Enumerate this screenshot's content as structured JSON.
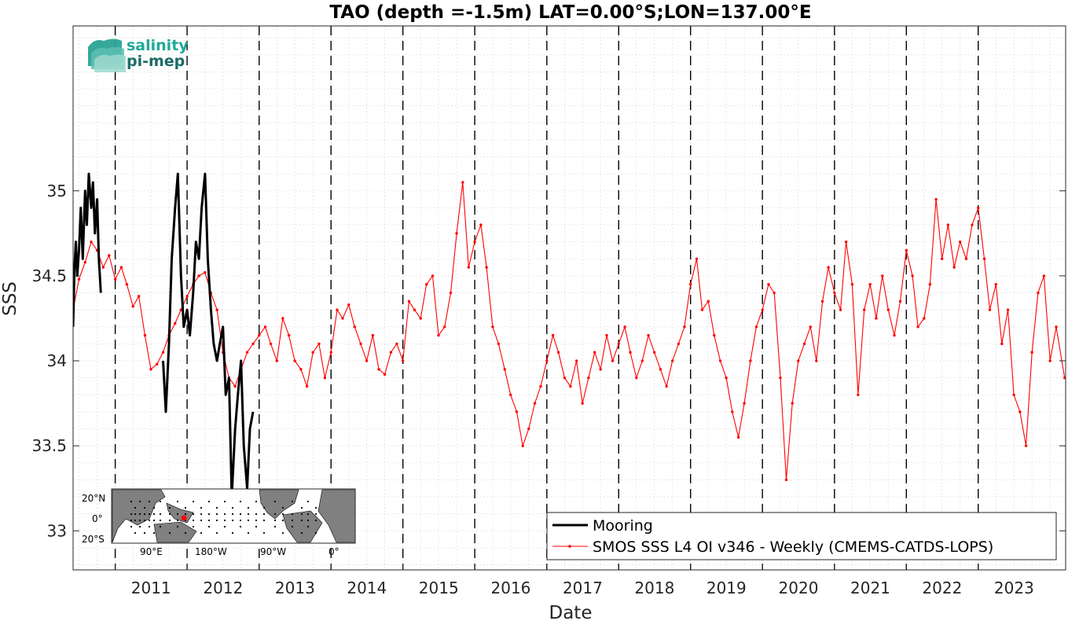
{
  "chart_data": {
    "type": "line",
    "title": "TAO (depth =-1.5m) LAT=0.00°S;LON=137.00°E",
    "xlabel": "Date",
    "ylabel": "SSS",
    "xlim": [
      "2010-06-01",
      "2024-03-20"
    ],
    "ylim": [
      32.77,
      35.97
    ],
    "x_ticks": [
      "2011",
      "2012",
      "2013",
      "2014",
      "2015",
      "2016",
      "2017",
      "2018",
      "2019",
      "2020",
      "2021",
      "2022",
      "2023"
    ],
    "y_ticks": [
      33,
      33.5,
      34,
      34.5,
      35
    ],
    "year_boundaries": [
      "2011-01-01",
      "2012-01-01",
      "2013-01-01",
      "2014-01-01",
      "2015-01-01",
      "2016-01-01",
      "2017-01-01",
      "2018-01-01",
      "2019-01-01",
      "2020-01-01",
      "2021-01-01",
      "2022-01-01",
      "2023-01-01"
    ],
    "grid": true,
    "legend_position": "bottom-right",
    "series": [
      {
        "name": "Mooring",
        "color": "#000000",
        "style": "thick-line",
        "points": [
          [
            "2010-06-01",
            34.2
          ],
          [
            "2010-06-08",
            34.55
          ],
          [
            "2010-06-15",
            34.7
          ],
          [
            "2010-06-22",
            34.5
          ],
          [
            "2010-07-01",
            34.65
          ],
          [
            "2010-07-10",
            34.9
          ],
          [
            "2010-07-20",
            34.6
          ],
          [
            "2010-08-01",
            35.0
          ],
          [
            "2010-08-10",
            34.8
          ],
          [
            "2010-08-20",
            35.1
          ],
          [
            "2010-09-01",
            34.9
          ],
          [
            "2010-09-10",
            35.05
          ],
          [
            "2010-09-20",
            34.75
          ],
          [
            "2010-10-01",
            34.95
          ],
          [
            "2010-10-10",
            34.6
          ],
          [
            "2010-10-20",
            34.4
          ],
          [
            "2011-09-01",
            34.0
          ],
          [
            "2011-09-15",
            33.7
          ],
          [
            "2011-10-01",
            34.1
          ],
          [
            "2011-10-15",
            34.6
          ],
          [
            "2011-11-01",
            34.9
          ],
          [
            "2011-11-15",
            35.1
          ],
          [
            "2011-12-01",
            34.5
          ],
          [
            "2011-12-15",
            34.2
          ],
          [
            "2012-01-01",
            34.3
          ],
          [
            "2012-01-15",
            34.15
          ],
          [
            "2012-02-01",
            34.4
          ],
          [
            "2012-02-15",
            34.7
          ],
          [
            "2012-03-01",
            34.6
          ],
          [
            "2012-03-15",
            34.9
          ],
          [
            "2012-04-01",
            35.1
          ],
          [
            "2012-04-15",
            34.6
          ],
          [
            "2012-05-01",
            34.3
          ],
          [
            "2012-05-15",
            34.1
          ],
          [
            "2012-06-01",
            34.0
          ],
          [
            "2012-06-15",
            34.1
          ],
          [
            "2012-07-01",
            34.2
          ],
          [
            "2012-07-15",
            33.8
          ],
          [
            "2012-08-01",
            33.9
          ],
          [
            "2012-08-15",
            33.2
          ],
          [
            "2012-09-01",
            33.6
          ],
          [
            "2012-09-15",
            33.8
          ],
          [
            "2012-10-01",
            34.0
          ],
          [
            "2012-10-15",
            33.5
          ],
          [
            "2012-11-01",
            33.25
          ],
          [
            "2012-11-15",
            33.6
          ],
          [
            "2012-12-01",
            33.7
          ]
        ]
      },
      {
        "name": "SMOS SSS L4 OI v346 - Weekly (CMEMS-CATDS-LOPS)",
        "color": "#ff0000",
        "style": "line-dots",
        "points": [
          [
            "2010-06-01",
            34.3
          ],
          [
            "2010-07-01",
            34.48
          ],
          [
            "2010-08-01",
            34.58
          ],
          [
            "2010-09-01",
            34.7
          ],
          [
            "2010-10-01",
            34.65
          ],
          [
            "2010-11-01",
            34.55
          ],
          [
            "2010-12-01",
            34.62
          ],
          [
            "2011-01-01",
            34.48
          ],
          [
            "2011-02-01",
            34.55
          ],
          [
            "2011-03-01",
            34.45
          ],
          [
            "2011-04-01",
            34.32
          ],
          [
            "2011-05-01",
            34.38
          ],
          [
            "2011-06-01",
            34.15
          ],
          [
            "2011-07-01",
            33.95
          ],
          [
            "2011-08-01",
            33.98
          ],
          [
            "2011-09-01",
            34.05
          ],
          [
            "2011-10-01",
            34.15
          ],
          [
            "2011-11-01",
            34.22
          ],
          [
            "2011-12-01",
            34.3
          ],
          [
            "2012-01-01",
            34.38
          ],
          [
            "2012-02-01",
            34.45
          ],
          [
            "2012-03-01",
            34.5
          ],
          [
            "2012-04-01",
            34.52
          ],
          [
            "2012-05-01",
            34.4
          ],
          [
            "2012-06-01",
            34.3
          ],
          [
            "2012-07-01",
            34.05
          ],
          [
            "2012-08-01",
            33.9
          ],
          [
            "2012-09-01",
            33.85
          ],
          [
            "2012-10-01",
            33.95
          ],
          [
            "2012-11-01",
            34.05
          ],
          [
            "2012-12-01",
            34.1
          ],
          [
            "2013-01-01",
            34.15
          ],
          [
            "2013-02-01",
            34.2
          ],
          [
            "2013-03-01",
            34.1
          ],
          [
            "2013-04-01",
            34.0
          ],
          [
            "2013-05-01",
            34.25
          ],
          [
            "2013-06-01",
            34.15
          ],
          [
            "2013-07-01",
            34.0
          ],
          [
            "2013-08-01",
            33.95
          ],
          [
            "2013-09-01",
            33.85
          ],
          [
            "2013-10-01",
            34.05
          ],
          [
            "2013-11-01",
            34.1
          ],
          [
            "2013-12-01",
            33.9
          ],
          [
            "2014-01-01",
            34.05
          ],
          [
            "2014-02-01",
            34.3
          ],
          [
            "2014-03-01",
            34.25
          ],
          [
            "2014-04-01",
            34.33
          ],
          [
            "2014-05-01",
            34.2
          ],
          [
            "2014-06-01",
            34.1
          ],
          [
            "2014-07-01",
            34.0
          ],
          [
            "2014-08-01",
            34.15
          ],
          [
            "2014-09-01",
            33.95
          ],
          [
            "2014-10-01",
            33.92
          ],
          [
            "2014-11-01",
            34.05
          ],
          [
            "2014-12-01",
            34.1
          ],
          [
            "2015-01-01",
            34.0
          ],
          [
            "2015-02-01",
            34.35
          ],
          [
            "2015-03-01",
            34.3
          ],
          [
            "2015-04-01",
            34.25
          ],
          [
            "2015-05-01",
            34.45
          ],
          [
            "2015-06-01",
            34.5
          ],
          [
            "2015-07-01",
            34.15
          ],
          [
            "2015-08-01",
            34.2
          ],
          [
            "2015-09-01",
            34.4
          ],
          [
            "2015-10-01",
            34.75
          ],
          [
            "2015-11-01",
            35.05
          ],
          [
            "2015-12-01",
            34.55
          ],
          [
            "2016-01-01",
            34.7
          ],
          [
            "2016-02-01",
            34.8
          ],
          [
            "2016-03-01",
            34.55
          ],
          [
            "2016-04-01",
            34.2
          ],
          [
            "2016-05-01",
            34.1
          ],
          [
            "2016-06-01",
            33.95
          ],
          [
            "2016-07-01",
            33.8
          ],
          [
            "2016-08-01",
            33.7
          ],
          [
            "2016-09-01",
            33.5
          ],
          [
            "2016-10-01",
            33.6
          ],
          [
            "2016-11-01",
            33.75
          ],
          [
            "2016-12-01",
            33.85
          ],
          [
            "2017-01-01",
            34.0
          ],
          [
            "2017-02-01",
            34.15
          ],
          [
            "2017-03-01",
            34.05
          ],
          [
            "2017-04-01",
            33.9
          ],
          [
            "2017-05-01",
            33.85
          ],
          [
            "2017-06-01",
            34.0
          ],
          [
            "2017-07-01",
            33.75
          ],
          [
            "2017-08-01",
            33.9
          ],
          [
            "2017-09-01",
            34.05
          ],
          [
            "2017-10-01",
            33.95
          ],
          [
            "2017-11-01",
            34.15
          ],
          [
            "2017-12-01",
            34.0
          ],
          [
            "2018-01-01",
            34.1
          ],
          [
            "2018-02-01",
            34.2
          ],
          [
            "2018-03-01",
            34.05
          ],
          [
            "2018-04-01",
            33.9
          ],
          [
            "2018-05-01",
            34.0
          ],
          [
            "2018-06-01",
            34.15
          ],
          [
            "2018-07-01",
            34.05
          ],
          [
            "2018-08-01",
            33.95
          ],
          [
            "2018-09-01",
            33.85
          ],
          [
            "2018-10-01",
            34.0
          ],
          [
            "2018-11-01",
            34.1
          ],
          [
            "2018-12-01",
            34.2
          ],
          [
            "2019-01-01",
            34.45
          ],
          [
            "2019-02-01",
            34.6
          ],
          [
            "2019-03-01",
            34.3
          ],
          [
            "2019-04-01",
            34.35
          ],
          [
            "2019-05-01",
            34.15
          ],
          [
            "2019-06-01",
            34.0
          ],
          [
            "2019-07-01",
            33.9
          ],
          [
            "2019-08-01",
            33.7
          ],
          [
            "2019-09-01",
            33.55
          ],
          [
            "2019-10-01",
            33.75
          ],
          [
            "2019-11-01",
            34.0
          ],
          [
            "2019-12-01",
            34.2
          ],
          [
            "2020-01-01",
            34.3
          ],
          [
            "2020-02-01",
            34.45
          ],
          [
            "2020-03-01",
            34.4
          ],
          [
            "2020-04-01",
            33.9
          ],
          [
            "2020-05-01",
            33.3
          ],
          [
            "2020-06-01",
            33.75
          ],
          [
            "2020-07-01",
            34.0
          ],
          [
            "2020-08-01",
            34.1
          ],
          [
            "2020-09-01",
            34.2
          ],
          [
            "2020-10-01",
            34.0
          ],
          [
            "2020-11-01",
            34.35
          ],
          [
            "2020-12-01",
            34.55
          ],
          [
            "2021-01-01",
            34.4
          ],
          [
            "2021-02-01",
            34.3
          ],
          [
            "2021-03-01",
            34.7
          ],
          [
            "2021-04-01",
            34.45
          ],
          [
            "2021-05-01",
            33.8
          ],
          [
            "2021-06-01",
            34.3
          ],
          [
            "2021-07-01",
            34.45
          ],
          [
            "2021-08-01",
            34.25
          ],
          [
            "2021-09-01",
            34.5
          ],
          [
            "2021-10-01",
            34.3
          ],
          [
            "2021-11-01",
            34.15
          ],
          [
            "2021-12-01",
            34.35
          ],
          [
            "2022-01-01",
            34.65
          ],
          [
            "2022-02-01",
            34.5
          ],
          [
            "2022-03-01",
            34.2
          ],
          [
            "2022-04-01",
            34.25
          ],
          [
            "2022-05-01",
            34.45
          ],
          [
            "2022-06-01",
            34.95
          ],
          [
            "2022-07-01",
            34.6
          ],
          [
            "2022-08-01",
            34.8
          ],
          [
            "2022-09-01",
            34.55
          ],
          [
            "2022-10-01",
            34.7
          ],
          [
            "2022-11-01",
            34.6
          ],
          [
            "2022-12-01",
            34.8
          ],
          [
            "2023-01-01",
            34.9
          ],
          [
            "2023-02-01",
            34.6
          ],
          [
            "2023-03-01",
            34.3
          ],
          [
            "2023-04-01",
            34.45
          ],
          [
            "2023-05-01",
            34.1
          ],
          [
            "2023-06-01",
            34.3
          ],
          [
            "2023-07-01",
            33.8
          ],
          [
            "2023-08-01",
            33.7
          ],
          [
            "2023-09-01",
            33.5
          ],
          [
            "2023-10-01",
            34.05
          ],
          [
            "2023-11-01",
            34.4
          ],
          [
            "2023-12-01",
            34.5
          ],
          [
            "2024-01-01",
            34.0
          ],
          [
            "2024-02-01",
            34.2
          ],
          [
            "2024-03-15",
            33.9
          ]
        ]
      }
    ]
  },
  "legend": {
    "mooring_label": "Mooring",
    "smos_label": "SMOS SSS L4 OI v346 - Weekly (CMEMS-CATDS-LOPS)"
  },
  "logo": {
    "line1": "salinity",
    "line2": "pi-mep"
  },
  "inset_map": {
    "lat_labels": [
      "20°N",
      "0°",
      "20°S"
    ],
    "lon_labels": [
      "90°E",
      "180°W",
      "90°W",
      "0°"
    ],
    "marker_color": "#ff0000",
    "land_color": "#808080"
  }
}
